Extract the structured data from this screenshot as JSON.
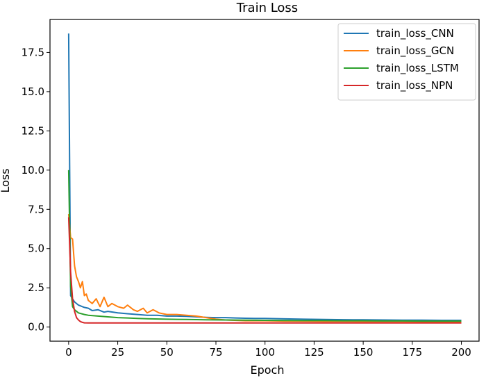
{
  "chart_data": {
    "type": "line",
    "title": "Train Loss",
    "xlabel": "Epoch",
    "ylabel": "Loss",
    "xlim": [
      -9.5,
      209
    ],
    "ylim": [
      -0.9,
      19.6
    ],
    "xticks": [
      0,
      25,
      50,
      75,
      100,
      125,
      150,
      175,
      200
    ],
    "yticks": [
      0.0,
      2.5,
      5.0,
      7.5,
      10.0,
      12.5,
      15.0,
      17.5
    ],
    "ytick_labels": [
      "0.0",
      "2.5",
      "5.0",
      "7.5",
      "10.0",
      "12.5",
      "15.0",
      "17.5"
    ],
    "legend_position": "top-right",
    "grid": false,
    "series": [
      {
        "name": "train_loss_CNN",
        "color": "#1f77b4",
        "points": [
          [
            0,
            18.7
          ],
          [
            1,
            2.0
          ],
          [
            2,
            1.8
          ],
          [
            3,
            1.6
          ],
          [
            5,
            1.4
          ],
          [
            8,
            1.25
          ],
          [
            10,
            1.2
          ],
          [
            12,
            1.05
          ],
          [
            15,
            1.1
          ],
          [
            18,
            0.95
          ],
          [
            20,
            1.0
          ],
          [
            25,
            0.9
          ],
          [
            30,
            0.85
          ],
          [
            35,
            0.8
          ],
          [
            40,
            0.75
          ],
          [
            45,
            0.75
          ],
          [
            50,
            0.7
          ],
          [
            55,
            0.7
          ],
          [
            60,
            0.68
          ],
          [
            65,
            0.65
          ],
          [
            70,
            0.62
          ],
          [
            75,
            0.6
          ],
          [
            80,
            0.6
          ],
          [
            85,
            0.58
          ],
          [
            90,
            0.56
          ],
          [
            95,
            0.55
          ],
          [
            100,
            0.55
          ],
          [
            110,
            0.52
          ],
          [
            120,
            0.5
          ],
          [
            130,
            0.48
          ],
          [
            140,
            0.47
          ],
          [
            150,
            0.46
          ],
          [
            160,
            0.45
          ],
          [
            170,
            0.44
          ],
          [
            180,
            0.44
          ],
          [
            190,
            0.43
          ],
          [
            200,
            0.43
          ]
        ]
      },
      {
        "name": "train_loss_GCN",
        "color": "#ff7f0e",
        "points": [
          [
            0,
            7.2
          ],
          [
            1,
            5.7
          ],
          [
            2,
            5.6
          ],
          [
            3,
            3.9
          ],
          [
            4,
            3.2
          ],
          [
            5,
            2.9
          ],
          [
            6,
            2.5
          ],
          [
            7,
            2.9
          ],
          [
            8,
            2.0
          ],
          [
            9,
            2.1
          ],
          [
            10,
            1.7
          ],
          [
            12,
            1.5
          ],
          [
            14,
            1.8
          ],
          [
            16,
            1.3
          ],
          [
            18,
            1.9
          ],
          [
            20,
            1.3
          ],
          [
            22,
            1.5
          ],
          [
            25,
            1.3
          ],
          [
            28,
            1.2
          ],
          [
            30,
            1.4
          ],
          [
            33,
            1.1
          ],
          [
            35,
            1.0
          ],
          [
            38,
            1.2
          ],
          [
            40,
            0.9
          ],
          [
            43,
            1.1
          ],
          [
            46,
            0.9
          ],
          [
            50,
            0.8
          ],
          [
            55,
            0.8
          ],
          [
            60,
            0.75
          ],
          [
            65,
            0.7
          ],
          [
            70,
            0.6
          ],
          [
            75,
            0.5
          ],
          [
            80,
            0.45
          ],
          [
            90,
            0.4
          ],
          [
            100,
            0.4
          ],
          [
            110,
            0.38
          ],
          [
            120,
            0.37
          ],
          [
            130,
            0.36
          ],
          [
            140,
            0.36
          ],
          [
            150,
            0.35
          ],
          [
            160,
            0.35
          ],
          [
            170,
            0.35
          ],
          [
            180,
            0.34
          ],
          [
            190,
            0.34
          ],
          [
            200,
            0.34
          ]
        ]
      },
      {
        "name": "train_loss_LSTM",
        "color": "#2ca02c",
        "points": [
          [
            0,
            10.0
          ],
          [
            1,
            2.6
          ],
          [
            2,
            1.3
          ],
          [
            3,
            1.1
          ],
          [
            5,
            0.9
          ],
          [
            8,
            0.8
          ],
          [
            10,
            0.75
          ],
          [
            15,
            0.7
          ],
          [
            20,
            0.65
          ],
          [
            25,
            0.6
          ],
          [
            30,
            0.58
          ],
          [
            35,
            0.55
          ],
          [
            40,
            0.53
          ],
          [
            50,
            0.5
          ],
          [
            60,
            0.48
          ],
          [
            70,
            0.46
          ],
          [
            80,
            0.45
          ],
          [
            90,
            0.44
          ],
          [
            100,
            0.43
          ],
          [
            110,
            0.42
          ],
          [
            120,
            0.41
          ],
          [
            130,
            0.41
          ],
          [
            140,
            0.4
          ],
          [
            150,
            0.4
          ],
          [
            160,
            0.39
          ],
          [
            170,
            0.39
          ],
          [
            180,
            0.38
          ],
          [
            190,
            0.38
          ],
          [
            200,
            0.38
          ]
        ]
      },
      {
        "name": "train_loss_NPN",
        "color": "#d62728",
        "points": [
          [
            0,
            7.0
          ],
          [
            1,
            3.5
          ],
          [
            2,
            1.8
          ],
          [
            3,
            1.0
          ],
          [
            4,
            0.6
          ],
          [
            5,
            0.45
          ],
          [
            6,
            0.35
          ],
          [
            7,
            0.3
          ],
          [
            8,
            0.27
          ],
          [
            10,
            0.26
          ],
          [
            20,
            0.26
          ],
          [
            50,
            0.26
          ],
          [
            100,
            0.26
          ],
          [
            150,
            0.26
          ],
          [
            200,
            0.26
          ]
        ]
      }
    ]
  }
}
